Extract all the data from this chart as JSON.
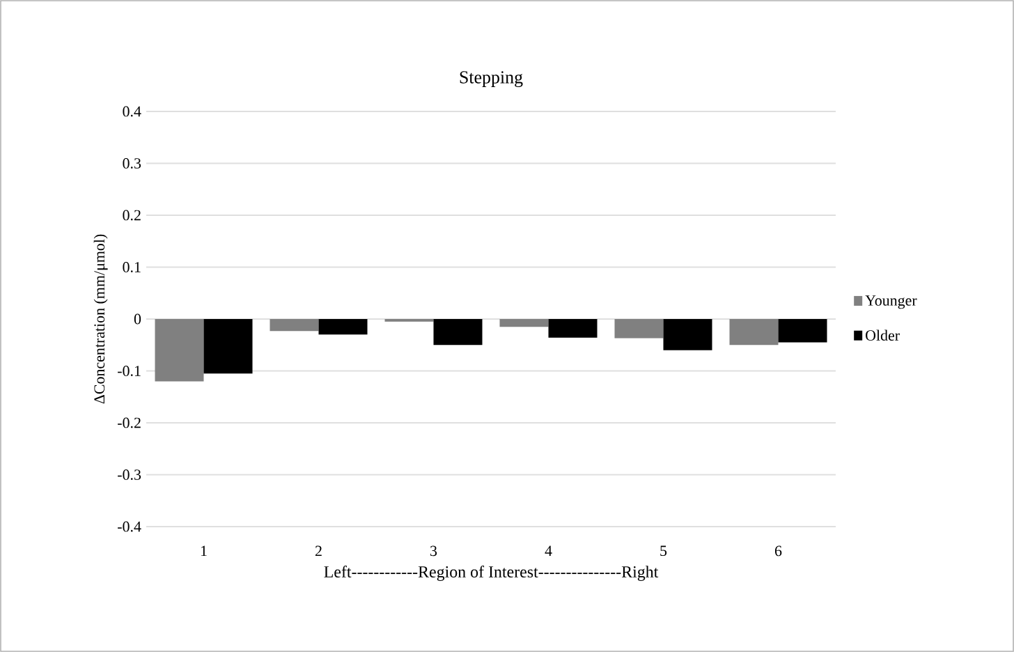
{
  "chart_data": {
    "type": "bar",
    "title": "Stepping",
    "xlabel": "Left------------Region of Interest---------------Right",
    "ylabel": "ΔConcentration (mm/μmol)",
    "categories": [
      "1",
      "2",
      "3",
      "4",
      "5",
      "6"
    ],
    "series": [
      {
        "name": "Younger",
        "color": "#808080",
        "values": [
          -0.12,
          -0.023,
          -0.005,
          -0.015,
          -0.037,
          -0.05
        ]
      },
      {
        "name": "Older",
        "color": "#000000",
        "values": [
          -0.105,
          -0.03,
          -0.05,
          -0.036,
          -0.06,
          -0.045
        ]
      }
    ],
    "ylim": [
      -0.4,
      0.4
    ],
    "yticks": [
      -0.4,
      -0.3,
      -0.2,
      -0.1,
      0,
      0.1,
      0.2,
      0.3,
      0.4
    ],
    "grid": "y",
    "legend": "right"
  }
}
